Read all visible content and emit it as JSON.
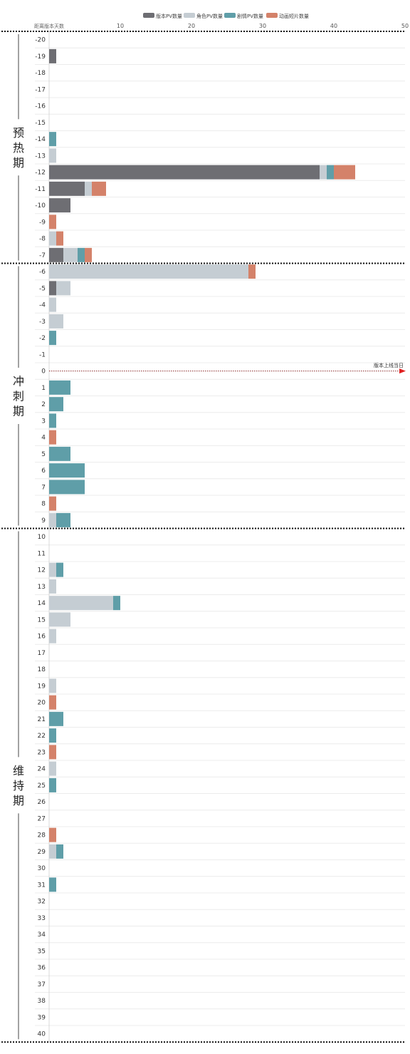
{
  "chart_data": {
    "type": "bar",
    "orientation": "horizontal",
    "stacked": true,
    "x_axis_title": "距离版本天数",
    "xlim": [
      0,
      50
    ],
    "x_ticks": [
      10,
      20,
      30,
      40,
      50
    ],
    "grid": true,
    "legend_position": "top-center",
    "categories": [
      "-20",
      "-19",
      "-18",
      "-17",
      "-16",
      "-15",
      "-14",
      "-13",
      "-12",
      "-11",
      "-10",
      "-9",
      "-8",
      "-7",
      "-6",
      "-5",
      "-4",
      "-3",
      "-2",
      "-1",
      "0",
      "1",
      "2",
      "3",
      "4",
      "5",
      "6",
      "7",
      "8",
      "9",
      "10",
      "11",
      "12",
      "13",
      "14",
      "15",
      "16",
      "17",
      "18",
      "19",
      "20",
      "21",
      "22",
      "23",
      "24",
      "25",
      "26",
      "27",
      "28",
      "29",
      "30",
      "31",
      "32",
      "33",
      "34",
      "35",
      "36",
      "37",
      "38",
      "39",
      "40"
    ],
    "series": [
      {
        "name": "版本PV数量",
        "color": "#6e6e73",
        "values": [
          0,
          1,
          0,
          0,
          0,
          0,
          0,
          0,
          38,
          5,
          3,
          0,
          0,
          2,
          0,
          1,
          0,
          0,
          0,
          0,
          0,
          0,
          0,
          0,
          0,
          0,
          0,
          0,
          0,
          0,
          0,
          0,
          0,
          0,
          0,
          0,
          0,
          0,
          0,
          0,
          0,
          0,
          0,
          0,
          0,
          0,
          0,
          0,
          0,
          0,
          0,
          0,
          0,
          0,
          0,
          0,
          0,
          0,
          0,
          0,
          0
        ]
      },
      {
        "name": "角色PV数量",
        "color": "#c5cdd3",
        "values": [
          0,
          0,
          0,
          0,
          0,
          0,
          0,
          1,
          1,
          1,
          0,
          0,
          1,
          2,
          28,
          2,
          1,
          2,
          0,
          0,
          0,
          0,
          0,
          0,
          0,
          0,
          0,
          0,
          0,
          1,
          0,
          0,
          1,
          1,
          9,
          3,
          1,
          0,
          0,
          1,
          0,
          0,
          0,
          0,
          1,
          0,
          0,
          0,
          0,
          1,
          0,
          0,
          0,
          0,
          0,
          0,
          0,
          0,
          0,
          0,
          0
        ]
      },
      {
        "name": "剧情PV数量",
        "color": "#5f9ea8",
        "values": [
          0,
          0,
          0,
          0,
          0,
          0,
          1,
          0,
          1,
          0,
          0,
          0,
          0,
          1,
          0,
          0,
          0,
          0,
          1,
          0,
          0,
          3,
          2,
          1,
          0,
          3,
          5,
          5,
          0,
          2,
          0,
          0,
          1,
          0,
          1,
          0,
          0,
          0,
          0,
          0,
          0,
          2,
          1,
          0,
          0,
          1,
          0,
          0,
          0,
          1,
          0,
          1,
          0,
          0,
          0,
          0,
          0,
          0,
          0,
          0,
          0
        ]
      },
      {
        "name": "动画短片数量",
        "color": "#d4826a",
        "values": [
          0,
          0,
          0,
          0,
          0,
          0,
          0,
          0,
          3,
          2,
          0,
          1,
          1,
          1,
          1,
          0,
          0,
          0,
          0,
          0,
          0,
          0,
          0,
          0,
          1,
          0,
          0,
          0,
          1,
          0,
          0,
          0,
          0,
          0,
          0,
          0,
          0,
          0,
          0,
          0,
          1,
          0,
          0,
          1,
          0,
          0,
          0,
          0,
          1,
          0,
          0,
          0,
          0,
          0,
          0,
          0,
          0,
          0,
          0,
          0,
          0
        ]
      }
    ],
    "annotation": "版本上线当日",
    "annotation_color": "#e02020",
    "phases": [
      {
        "label": "预热期",
        "chars": [
          "预",
          "热",
          "期"
        ],
        "from": "-20",
        "to": "-7"
      },
      {
        "label": "冲刺期",
        "chars": [
          "冲",
          "刺",
          "期"
        ],
        "from": "-6",
        "to": "9"
      },
      {
        "label": "维持期",
        "chars": [
          "维",
          "持",
          "期"
        ],
        "from": "10",
        "to": "40"
      }
    ]
  }
}
